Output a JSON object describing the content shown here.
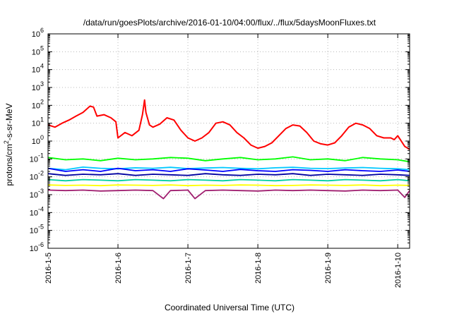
{
  "chart_data": {
    "type": "line",
    "title": "/data/run/goesPlots/archive/2016-01-10/04:00/flux/../flux/5daysMoonFluxes.txt",
    "xlabel": "Coordinated Universal Time (UTC)",
    "ylabel_parts": [
      "protons/cm",
      "2",
      "-s-sr-MeV"
    ],
    "x_tick_labels": [
      "2016-1-5",
      "2016-1-6",
      "2016-1-7",
      "2016-1-8",
      "2016-1-9",
      "2016-1-10"
    ],
    "x_tick_days": [
      0,
      1,
      2,
      3,
      4,
      5
    ],
    "xlim_days_from_2016_01_05": [
      0,
      5.17
    ],
    "yscale": "log",
    "y_tick_exponents": [
      -6,
      -5,
      -4,
      -3,
      -2,
      -1,
      0,
      1,
      2,
      3,
      4,
      5,
      6
    ],
    "y_tick_base": "10",
    "ylim": [
      1e-06,
      1000000.0
    ],
    "grid": true,
    "legend": "none",
    "series": [
      {
        "color": "#ff0000",
        "x": [
          0,
          0.1,
          0.2,
          0.3,
          0.4,
          0.5,
          0.6,
          0.65,
          0.7,
          0.8,
          0.9,
          0.97,
          1.0,
          1.1,
          1.2,
          1.3,
          1.35,
          1.38,
          1.4,
          1.45,
          1.5,
          1.6,
          1.7,
          1.8,
          1.9,
          2.0,
          2.1,
          2.2,
          2.3,
          2.4,
          2.5,
          2.6,
          2.7,
          2.8,
          2.9,
          3.0,
          3.1,
          3.2,
          3.3,
          3.4,
          3.5,
          3.6,
          3.7,
          3.8,
          3.9,
          4.0,
          4.1,
          4.2,
          4.3,
          4.4,
          4.5,
          4.6,
          4.7,
          4.8,
          4.9,
          4.95,
          5.0,
          5.1,
          5.17
        ],
        "values": [
          8,
          6,
          10,
          15,
          25,
          40,
          90,
          80,
          25,
          30,
          20,
          12,
          1.5,
          3,
          2,
          4,
          30,
          200,
          40,
          8,
          6,
          9,
          20,
          15,
          4,
          1.5,
          1,
          1.5,
          3,
          10,
          12,
          8,
          3,
          1.5,
          0.6,
          0.4,
          0.5,
          0.8,
          2,
          5,
          8,
          7,
          3,
          1,
          0.7,
          0.6,
          0.8,
          2,
          6,
          10,
          8,
          5,
          2,
          1.5,
          1.5,
          1.2,
          2,
          0.5,
          0.35
        ]
      },
      {
        "color": "#00ff00",
        "x": [
          0,
          0.25,
          0.5,
          0.75,
          1,
          1.25,
          1.5,
          1.75,
          2,
          2.25,
          2.5,
          2.75,
          3,
          3.25,
          3.5,
          3.75,
          4,
          4.25,
          4.5,
          4.75,
          5,
          5.17
        ],
        "values": [
          0.12,
          0.09,
          0.1,
          0.08,
          0.11,
          0.09,
          0.1,
          0.12,
          0.11,
          0.08,
          0.1,
          0.12,
          0.09,
          0.1,
          0.13,
          0.09,
          0.1,
          0.08,
          0.12,
          0.1,
          0.09,
          0.07
        ]
      },
      {
        "color": "#00c8ff",
        "x": [
          0,
          0.25,
          0.5,
          0.75,
          1,
          1.25,
          1.5,
          1.75,
          2,
          2.25,
          2.5,
          2.75,
          3,
          3.25,
          3.5,
          3.75,
          4,
          4.25,
          4.5,
          4.75,
          5,
          5.17
        ],
        "values": [
          0.03,
          0.025,
          0.035,
          0.03,
          0.028,
          0.032,
          0.03,
          0.034,
          0.029,
          0.031,
          0.033,
          0.03,
          0.028,
          0.032,
          0.034,
          0.03,
          0.029,
          0.031,
          0.033,
          0.03,
          0.028,
          0.025
        ]
      },
      {
        "color": "#0000ff",
        "x": [
          0,
          0.25,
          0.5,
          0.75,
          1,
          1.25,
          1.5,
          1.75,
          2,
          2.25,
          2.5,
          2.75,
          3,
          3.25,
          3.5,
          3.75,
          4,
          4.25,
          4.5,
          4.75,
          5,
          5.17
        ],
        "values": [
          0.03,
          0.02,
          0.025,
          0.02,
          0.03,
          0.022,
          0.025,
          0.02,
          0.028,
          0.024,
          0.02,
          0.026,
          0.022,
          0.02,
          0.025,
          0.023,
          0.02,
          0.025,
          0.022,
          0.02,
          0.024,
          0.02
        ]
      },
      {
        "color": "#0000a0",
        "x": [
          0,
          0.25,
          0.5,
          0.75,
          1,
          1.25,
          1.5,
          1.75,
          2,
          2.25,
          2.5,
          2.75,
          3,
          3.25,
          3.5,
          3.75,
          4,
          4.25,
          4.5,
          4.75,
          5,
          5.17
        ],
        "values": [
          0.015,
          0.012,
          0.014,
          0.013,
          0.015,
          0.012,
          0.014,
          0.013,
          0.012,
          0.015,
          0.013,
          0.012,
          0.014,
          0.013,
          0.015,
          0.012,
          0.014,
          0.013,
          0.012,
          0.014,
          0.013,
          0.012
        ]
      },
      {
        "color": "#00d0a0",
        "x": [
          0,
          0.25,
          0.5,
          0.75,
          1,
          1.25,
          1.5,
          1.75,
          2,
          2.25,
          2.5,
          2.75,
          3,
          3.25,
          3.5,
          3.75,
          4,
          4.25,
          4.5,
          4.75,
          5,
          5.17
        ],
        "values": [
          0.007,
          0.006,
          0.007,
          0.0065,
          0.006,
          0.007,
          0.0065,
          0.006,
          0.007,
          0.0065,
          0.006,
          0.007,
          0.0065,
          0.006,
          0.007,
          0.0065,
          0.006,
          0.007,
          0.0065,
          0.006,
          0.007,
          0.006
        ]
      },
      {
        "color": "#ffff00",
        "x": [
          0,
          0.25,
          0.5,
          0.75,
          1,
          1.25,
          1.5,
          1.75,
          2,
          2.25,
          2.5,
          2.75,
          3,
          3.25,
          3.5,
          3.75,
          4,
          4.25,
          4.5,
          4.75,
          5,
          5.17
        ],
        "values": [
          0.0035,
          0.0033,
          0.0034,
          0.0032,
          0.0035,
          0.0034,
          0.0033,
          0.0035,
          0.0032,
          0.0034,
          0.0033,
          0.0035,
          0.0034,
          0.0032,
          0.0033,
          0.0035,
          0.0034,
          0.0033,
          0.0035,
          0.0032,
          0.0034,
          0.0033
        ]
      },
      {
        "color": "#a02070",
        "x": [
          0,
          0.25,
          0.5,
          0.75,
          1,
          1.25,
          1.5,
          1.65,
          1.75,
          2,
          2.1,
          2.25,
          2.5,
          2.75,
          3,
          3.25,
          3.5,
          3.75,
          4,
          4.25,
          4.5,
          4.75,
          5,
          5.1,
          5.17
        ],
        "values": [
          0.0018,
          0.0017,
          0.0018,
          0.0016,
          0.0017,
          0.0018,
          0.0017,
          0.0006,
          0.0017,
          0.0018,
          0.0006,
          0.0017,
          0.0018,
          0.0017,
          0.0016,
          0.0018,
          0.0017,
          0.0018,
          0.0017,
          0.0016,
          0.0018,
          0.0017,
          0.0018,
          0.0007,
          0.0017
        ]
      }
    ]
  }
}
